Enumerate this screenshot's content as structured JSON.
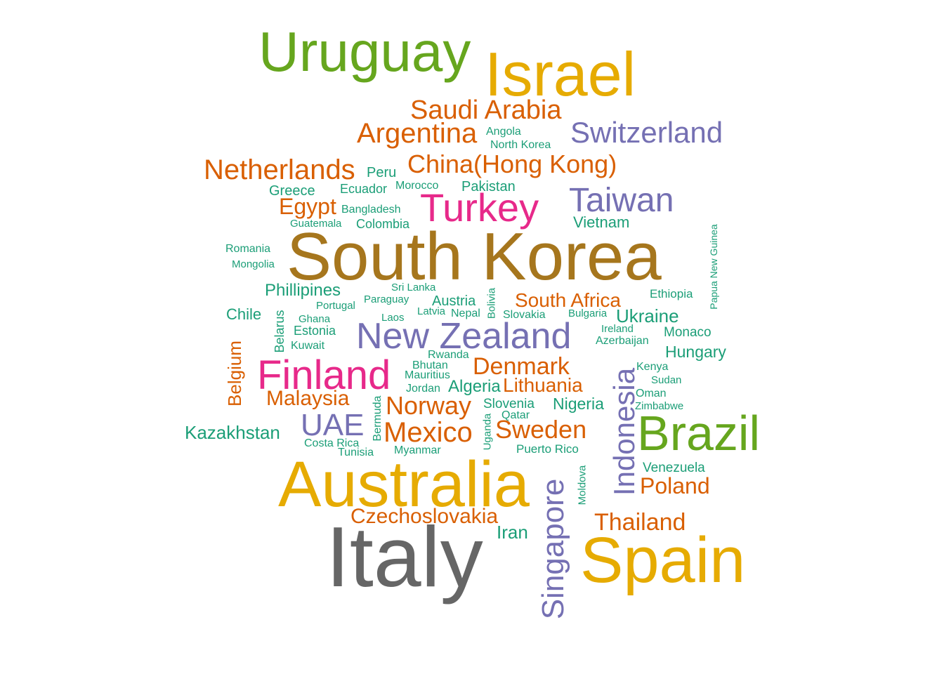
{
  "palette": {
    "teal": "#1b9e77",
    "orange": "#d95f02",
    "purple": "#7570b3",
    "magenta": "#e7298a",
    "green": "#66a61e",
    "gold": "#e6ab02",
    "brown": "#a6761d",
    "gray": "#666666"
  },
  "words": [
    {
      "text": "Uruguay",
      "color": "green"
    },
    {
      "text": "Israel",
      "color": "gold"
    },
    {
      "text": "Saudi Arabia",
      "color": "orange"
    },
    {
      "text": "Argentina",
      "color": "orange"
    },
    {
      "text": "Angola",
      "color": "teal"
    },
    {
      "text": "North Korea",
      "color": "teal"
    },
    {
      "text": "Switzerland",
      "color": "purple"
    },
    {
      "text": "Netherlands",
      "color": "orange"
    },
    {
      "text": "Peru",
      "color": "teal"
    },
    {
      "text": "China(Hong Kong)",
      "color": "orange"
    },
    {
      "text": "Greece",
      "color": "teal"
    },
    {
      "text": "Ecuador",
      "color": "teal"
    },
    {
      "text": "Morocco",
      "color": "teal"
    },
    {
      "text": "Pakistan",
      "color": "teal"
    },
    {
      "text": "Taiwan",
      "color": "purple"
    },
    {
      "text": "Egypt",
      "color": "orange"
    },
    {
      "text": "Bangladesh",
      "color": "teal"
    },
    {
      "text": "Turkey",
      "color": "magenta"
    },
    {
      "text": "Guatemala",
      "color": "teal"
    },
    {
      "text": "Colombia",
      "color": "teal"
    },
    {
      "text": "Vietnam",
      "color": "teal"
    },
    {
      "text": "Papua New Guinea",
      "color": "teal"
    },
    {
      "text": "Romania",
      "color": "teal"
    },
    {
      "text": "South Korea",
      "color": "brown"
    },
    {
      "text": "Mongolia",
      "color": "teal"
    },
    {
      "text": "Phillipines",
      "color": "teal"
    },
    {
      "text": "Sri Lanka",
      "color": "teal"
    },
    {
      "text": "Austria",
      "color": "teal"
    },
    {
      "text": "Bolivia",
      "color": "teal"
    },
    {
      "text": "South Africa",
      "color": "orange"
    },
    {
      "text": "Ethiopia",
      "color": "teal"
    },
    {
      "text": "Paraguay",
      "color": "teal"
    },
    {
      "text": "Portugal",
      "color": "teal"
    },
    {
      "text": "Chile",
      "color": "teal"
    },
    {
      "text": "Latvia",
      "color": "teal"
    },
    {
      "text": "Nepal",
      "color": "teal"
    },
    {
      "text": "Slovakia",
      "color": "teal"
    },
    {
      "text": "Bulgaria",
      "color": "teal"
    },
    {
      "text": "Ukraine",
      "color": "teal"
    },
    {
      "text": "Belarus",
      "color": "teal"
    },
    {
      "text": "Ghana",
      "color": "teal"
    },
    {
      "text": "Laos",
      "color": "teal"
    },
    {
      "text": "Estonia",
      "color": "teal"
    },
    {
      "text": "New Zealand",
      "color": "purple"
    },
    {
      "text": "Ireland",
      "color": "teal"
    },
    {
      "text": "Monaco",
      "color": "teal"
    },
    {
      "text": "Azerbaijan",
      "color": "teal"
    },
    {
      "text": "Kuwait",
      "color": "teal"
    },
    {
      "text": "Belgium",
      "color": "orange"
    },
    {
      "text": "Hungary",
      "color": "teal"
    },
    {
      "text": "Rwanda",
      "color": "teal"
    },
    {
      "text": "Bhutan",
      "color": "teal"
    },
    {
      "text": "Denmark",
      "color": "orange"
    },
    {
      "text": "Finland",
      "color": "magenta"
    },
    {
      "text": "Mauritius",
      "color": "teal"
    },
    {
      "text": "Kenya",
      "color": "teal"
    },
    {
      "text": "Indonesia",
      "color": "purple"
    },
    {
      "text": "Sudan",
      "color": "teal"
    },
    {
      "text": "Jordan",
      "color": "teal"
    },
    {
      "text": "Algeria",
      "color": "teal"
    },
    {
      "text": "Lithuania",
      "color": "orange"
    },
    {
      "text": "Oman",
      "color": "teal"
    },
    {
      "text": "Malaysia",
      "color": "orange"
    },
    {
      "text": "Bermuda",
      "color": "teal"
    },
    {
      "text": "Norway",
      "color": "orange"
    },
    {
      "text": "Slovenia",
      "color": "teal"
    },
    {
      "text": "Nigeria",
      "color": "teal"
    },
    {
      "text": "Zimbabwe",
      "color": "teal"
    },
    {
      "text": "Qatar",
      "color": "teal"
    },
    {
      "text": "Kazakhstan",
      "color": "teal"
    },
    {
      "text": "UAE",
      "color": "purple"
    },
    {
      "text": "Mexico",
      "color": "orange"
    },
    {
      "text": "Sweden",
      "color": "orange"
    },
    {
      "text": "Brazil",
      "color": "green"
    },
    {
      "text": "Uganda",
      "color": "teal"
    },
    {
      "text": "Costa Rica",
      "color": "teal"
    },
    {
      "text": "Tunisia",
      "color": "teal"
    },
    {
      "text": "Myanmar",
      "color": "teal"
    },
    {
      "text": "Puerto Rico",
      "color": "teal"
    },
    {
      "text": "Venezuela",
      "color": "teal"
    },
    {
      "text": "Moldova",
      "color": "teal"
    },
    {
      "text": "Australia",
      "color": "gold"
    },
    {
      "text": "Poland",
      "color": "orange"
    },
    {
      "text": "Singapore",
      "color": "purple"
    },
    {
      "text": "Czechoslovakia",
      "color": "orange"
    },
    {
      "text": "Thailand",
      "color": "orange"
    },
    {
      "text": "Iran",
      "color": "teal"
    },
    {
      "text": "Italy",
      "color": "gray"
    },
    {
      "text": "Spain",
      "color": "gold"
    }
  ]
}
